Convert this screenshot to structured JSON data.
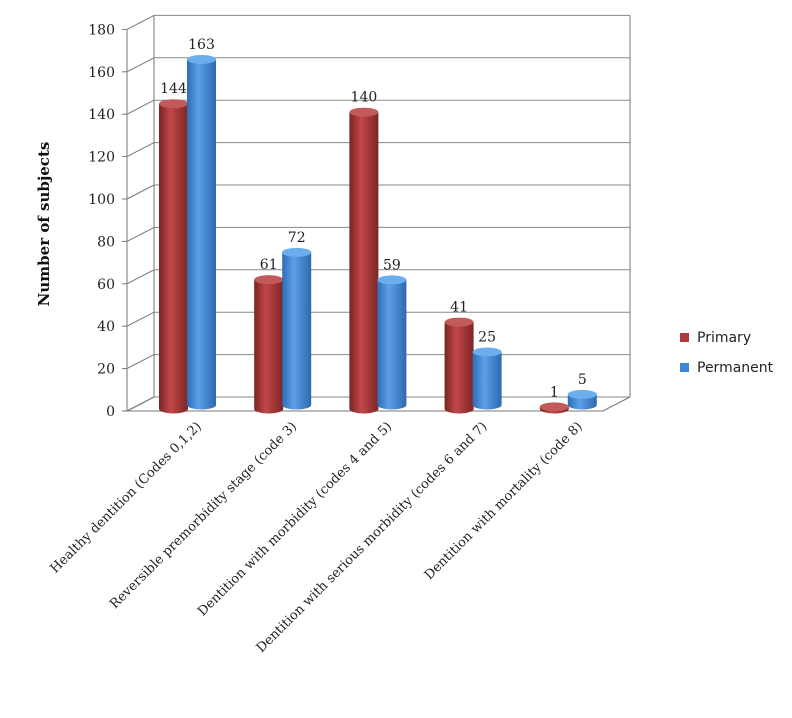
{
  "chart_data": {
    "type": "bar",
    "categories": [
      "Healthy dentition (Codes 0,1,2)",
      "Reversible  premorbidity stage (code 3)",
      "Dentition  with morbidity (codes 4 and 5)",
      "Dentition with serious morbidity (codes 6 and 7)",
      "Dentition  with mortality (code 8)"
    ],
    "series": [
      {
        "name": "Primary",
        "values": [
          144,
          61,
          140,
          41,
          1
        ],
        "color": "#b03a3a"
      },
      {
        "name": "Permanent",
        "values": [
          163,
          72,
          59,
          25,
          5
        ],
        "color": "#3f86d6"
      }
    ],
    "title": "",
    "xlabel": "",
    "ylabel": "Number of subjects",
    "ylim": [
      0,
      180
    ],
    "yticks": [
      0,
      20,
      40,
      60,
      80,
      100,
      120,
      140,
      160,
      180
    ],
    "grid": true,
    "legend": "right",
    "style": "3d-cylinder"
  }
}
